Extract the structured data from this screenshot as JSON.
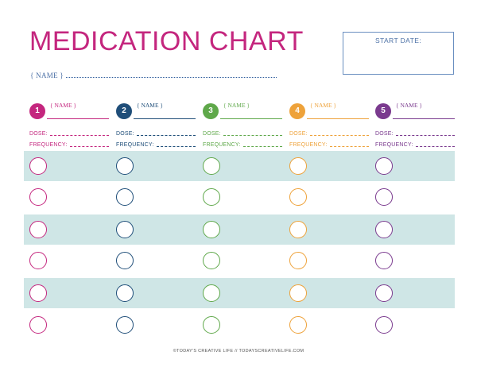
{
  "title": "MEDICATION CHART",
  "name_label": "{ NAME }",
  "start_date_label": "START DATE:",
  "medications": [
    {
      "number": "1",
      "name_label": "{ NAME }",
      "dose_label": "DOSE:",
      "frequency_label": "FREQUENCY:",
      "color": "#c4267e"
    },
    {
      "number": "2",
      "name_label": "{ NAME }",
      "dose_label": "DOSE:",
      "frequency_label": "FREQUENCY:",
      "color": "#1f4e79"
    },
    {
      "number": "3",
      "name_label": "{ NAME }",
      "dose_label": "DOSE:",
      "frequency_label": "FREQUENCY:",
      "color": "#5fa84a"
    },
    {
      "number": "4",
      "name_label": "{ NAME }",
      "dose_label": "DOSE:",
      "frequency_label": "FREQUENCY:",
      "color": "#eea23a"
    },
    {
      "number": "5",
      "name_label": "{ NAME }",
      "dose_label": "DOSE:",
      "frequency_label": "FREQUENCY:",
      "color": "#7a3a8e"
    }
  ],
  "band_color": "#cfe6e6",
  "footer": "©TODAY'S CREATIVE LIFE // TODAYSCREATIVELIFE.COM"
}
